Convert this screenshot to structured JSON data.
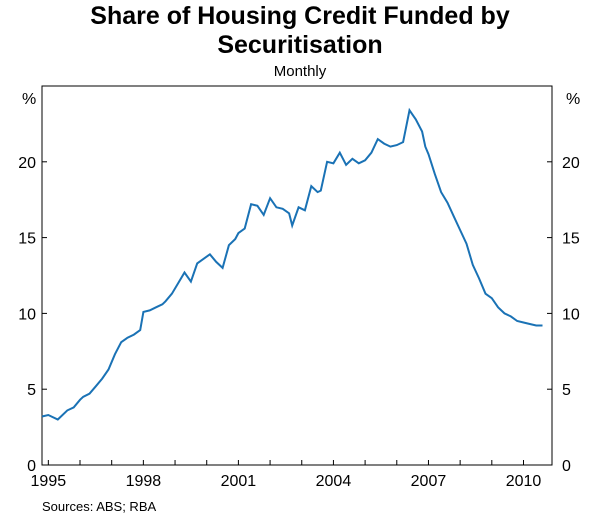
{
  "title_line1": "Share of Housing Credit Funded by",
  "title_line2": "Securitisation",
  "subtitle": "Monthly",
  "source": "Sources: ABS; RBA",
  "line_color": "#1a72b5",
  "chart_data": {
    "type": "line",
    "title": "Share of Housing Credit Funded by Securitisation",
    "subtitle": "Monthly",
    "unit_label_left": "%",
    "unit_label_right": "%",
    "ylim": [
      0,
      25
    ],
    "yticks": [
      0,
      5,
      10,
      15,
      20
    ],
    "xlim": [
      1994.8,
      2010.9
    ],
    "xticks": [
      1995,
      1998,
      2001,
      2004,
      2007,
      2010
    ],
    "xtick_labels": [
      "1995",
      "1998",
      "2001",
      "2004",
      "2007",
      "2010"
    ],
    "grid": false,
    "series": [
      {
        "x": [
          1994.8,
          1995.0,
          1995.3,
          1995.6,
          1995.8,
          1996.0,
          1996.1,
          1996.3,
          1996.5,
          1996.7,
          1996.9,
          1997.1,
          1997.3,
          1997.5,
          1997.7,
          1997.9,
          1998.0,
          1998.2,
          1998.4,
          1998.6,
          1998.7,
          1998.9,
          1999.1,
          1999.3,
          1999.5,
          1999.7,
          1999.9,
          2000.1,
          2000.3,
          2000.5,
          2000.7,
          2000.9,
          2001.0,
          2001.2,
          2001.4,
          2001.6,
          2001.8,
          2002.0,
          2002.2,
          2002.4,
          2002.6,
          2002.7,
          2002.9,
          2003.1,
          2003.3,
          2003.5,
          2003.6,
          2003.8,
          2004.0,
          2004.2,
          2004.4,
          2004.6,
          2004.8,
          2005.0,
          2005.2,
          2005.4,
          2005.6,
          2005.8,
          2006.0,
          2006.2,
          2006.4,
          2006.6,
          2006.8,
          2006.9,
          2007.0,
          2007.2,
          2007.4,
          2007.6,
          2007.8,
          2008.0,
          2008.2,
          2008.4,
          2008.6,
          2008.8,
          2009.0,
          2009.2,
          2009.4,
          2009.6,
          2009.8,
          2010.0,
          2010.2,
          2010.4,
          2010.6
        ],
        "y": [
          3.2,
          3.3,
          3.0,
          3.6,
          3.8,
          4.3,
          4.5,
          4.7,
          5.2,
          5.7,
          6.3,
          7.3,
          8.1,
          8.4,
          8.6,
          8.9,
          10.1,
          10.2,
          10.4,
          10.6,
          10.8,
          11.3,
          12.0,
          12.7,
          12.1,
          13.3,
          13.6,
          13.9,
          13.4,
          13.0,
          14.5,
          14.9,
          15.3,
          15.6,
          17.2,
          17.1,
          16.5,
          17.6,
          17.0,
          16.9,
          16.6,
          15.8,
          17.0,
          16.8,
          18.4,
          18.0,
          18.1,
          20.0,
          19.9,
          20.6,
          19.8,
          20.2,
          19.9,
          20.1,
          20.6,
          21.5,
          21.2,
          21.0,
          21.1,
          21.3,
          23.4,
          22.8,
          22.0,
          21.0,
          20.5,
          19.2,
          18.0,
          17.3,
          16.4,
          15.5,
          14.6,
          13.2,
          12.3,
          11.3,
          11.0,
          10.4,
          10.0,
          9.8,
          9.5,
          9.4,
          9.3,
          9.2,
          9.2
        ]
      }
    ]
  }
}
